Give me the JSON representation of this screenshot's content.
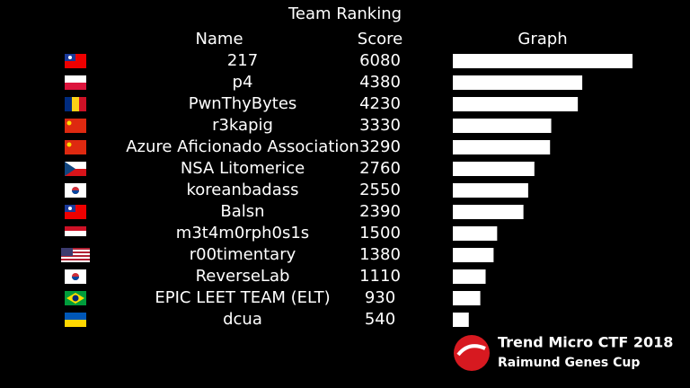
{
  "title": "Team Ranking",
  "headers": [
    "Name",
    "Score",
    "Graph"
  ],
  "rows": [
    {
      "name": "217",
      "score": 6080
    },
    {
      "name": "p4",
      "score": 4380
    },
    {
      "name": "PwnThyBytes",
      "score": 4230
    },
    {
      "name": "r3kapig",
      "score": 3330
    },
    {
      "name": "Azure Aficionado Association",
      "score": 3290
    },
    {
      "name": "NSA Litomerice",
      "score": 2760
    },
    {
      "name": "koreanbadass",
      "score": 2550
    },
    {
      "name": "Balsn",
      "score": 2390
    },
    {
      "name": "m3t4m0rph0s1s",
      "score": 1500
    },
    {
      "name": "r00timentary",
      "score": 1380
    },
    {
      "name": "ReverseLab",
      "score": 1110
    },
    {
      "name": "EPIC LEET TEAM (ELT)",
      "score": 930
    },
    {
      "name": "dcua",
      "score": 540
    }
  ],
  "logo": {
    "line1": "Trend Micro CTF 2018",
    "line2": "Raimund Genes Cup"
  }
}
